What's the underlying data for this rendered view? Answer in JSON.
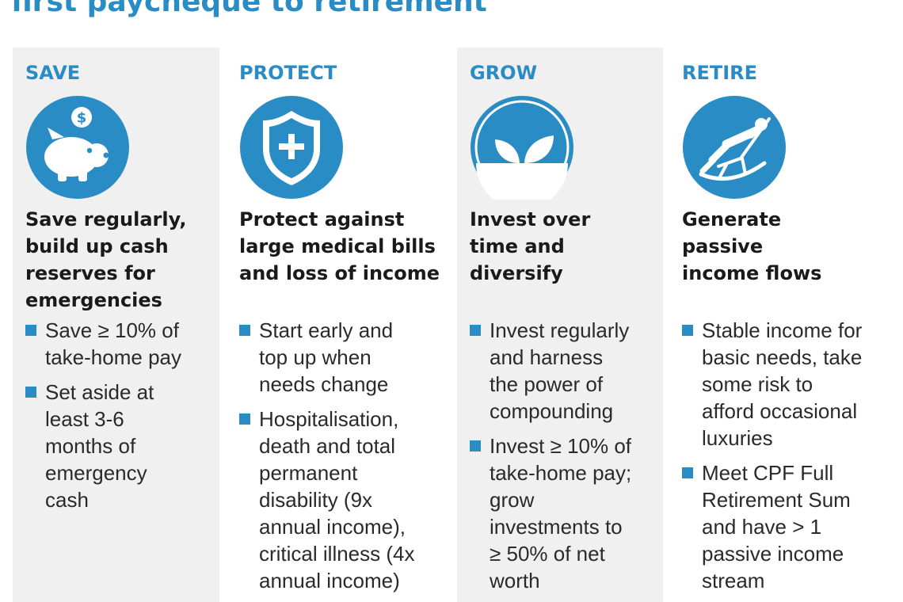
{
  "title": "first paycheque to retirement",
  "columns": [
    {
      "heading": "SAVE",
      "icon": "piggy-bank-icon",
      "subheading": [
        "Save regularly,",
        "build up cash",
        "reserves for",
        "emergencies"
      ],
      "bullets": [
        [
          "Save ≥ 10% of",
          "take-home pay"
        ],
        [
          "Set aside at",
          "least 3-6",
          "months of",
          "emergency",
          "cash"
        ]
      ]
    },
    {
      "heading": "PROTECT",
      "icon": "shield-icon",
      "subheading": [
        "Protect against",
        "large medical bills",
        "and loss of income"
      ],
      "bullets": [
        [
          "Start early and",
          "top up when",
          "needs change"
        ],
        [
          "Hospitalisation,",
          "death and total",
          "permanent",
          "disability (9x",
          "annual income),",
          "critical illness (4x",
          "annual income)"
        ]
      ]
    },
    {
      "heading": "GROW",
      "icon": "sprout-icon",
      "subheading": [
        "Invest over",
        "time and",
        "diversify"
      ],
      "bullets": [
        [
          "Invest regularly",
          "and harness",
          "the power of",
          "compounding"
        ],
        [
          "Invest ≥ 10% of",
          "take-home pay;",
          "grow",
          "investments to",
          "≥ 50% of net",
          "worth"
        ]
      ]
    },
    {
      "heading": "RETIRE",
      "icon": "rocking-chair-icon",
      "subheading": [
        "Generate",
        "passive",
        "income flows"
      ],
      "bullets": [
        [
          "Stable income for",
          "basic needs, take",
          "some risk to",
          "afford occasional",
          "luxuries"
        ],
        [
          "Meet CPF Full",
          "Retirement Sum",
          "and have > 1",
          "passive income",
          "stream"
        ]
      ]
    }
  ],
  "colors": {
    "accent": "#2a8cc4",
    "panel": "#f0f0f1",
    "text": "#1a1a1a"
  }
}
